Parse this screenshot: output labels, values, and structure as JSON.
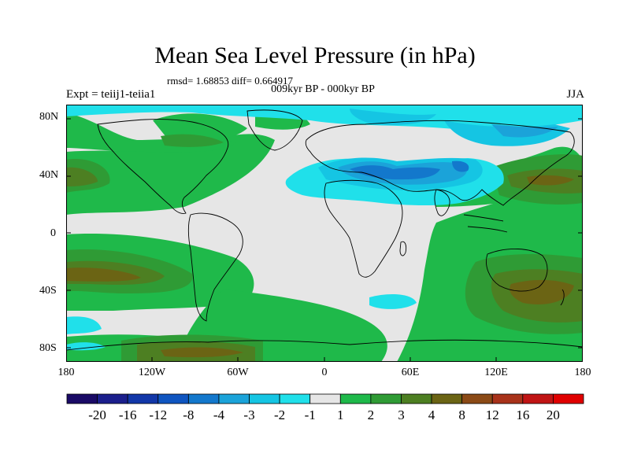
{
  "title": "Mean Sea Level Pressure (in hPa)",
  "stats": "rmsd= 1.68853 diff= 0.664917",
  "experiment": "Expt = teiij1-teiia1",
  "subtitle": "009kyr BP - 000kyr BP",
  "season": "JJA",
  "y_ticks": [
    "80N",
    "40N",
    "0",
    "40S",
    "80S"
  ],
  "x_ticks": [
    "180",
    "120W",
    "60W",
    "0",
    "60E",
    "120E",
    "180"
  ],
  "colorbar": {
    "labels": [
      "-20",
      "-16",
      "-12",
      "-8",
      "-4",
      "-3",
      "-2",
      "-1",
      "1",
      "2",
      "3",
      "4",
      "8",
      "12",
      "16",
      "20"
    ],
    "colors": [
      "#1a0a66",
      "#1b1f8c",
      "#1237a8",
      "#0f55c0",
      "#1378cc",
      "#1ba3d9",
      "#15c5e3",
      "#20e0ea",
      "#e6e6e6",
      "#1fb94a",
      "#2f9b35",
      "#4d7f22",
      "#6b6414",
      "#8b4a16",
      "#a8321a",
      "#c01414",
      "#e00000"
    ]
  }
}
